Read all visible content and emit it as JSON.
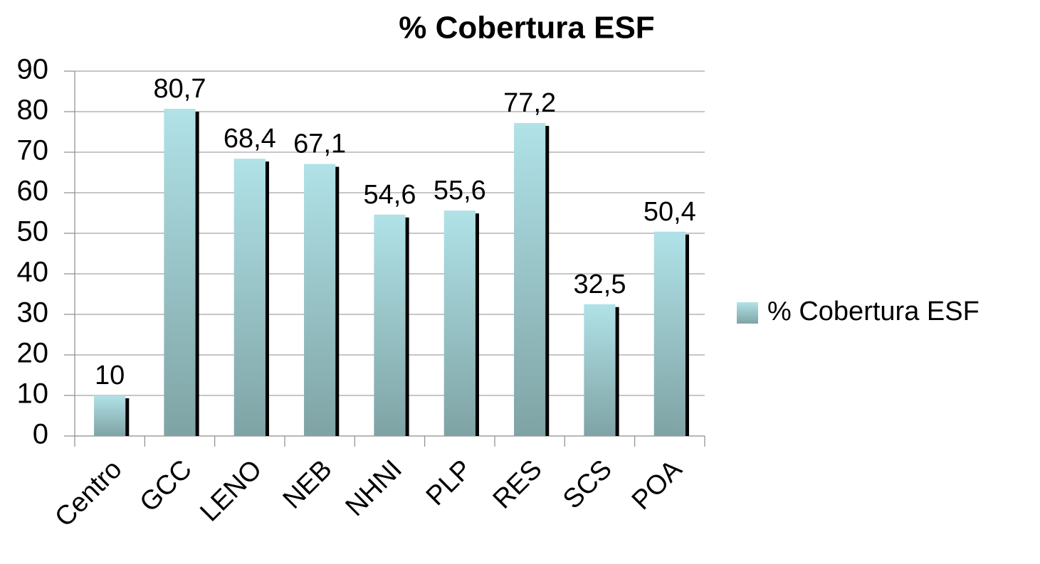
{
  "chart_data": {
    "type": "bar",
    "title": "% Cobertura ESF",
    "categories": [
      "Centro",
      "GCC",
      "LENO",
      "NEB",
      "NHNI",
      "PLP",
      "RES",
      "SCS",
      "POA"
    ],
    "series": [
      {
        "name": "% Cobertura ESF",
        "color": "#b0e2e7",
        "values": [
          10,
          80.7,
          68.4,
          67.1,
          54.6,
          55.6,
          77.2,
          32.5,
          50.4
        ],
        "value_labels": [
          "10",
          "80,7",
          "68,4",
          "67,1",
          "54,6",
          "55,6",
          "77,2",
          "32,5",
          "50,4"
        ]
      }
    ],
    "ylim": [
      0,
      90
    ],
    "yticks": [
      0,
      10,
      20,
      30,
      40,
      50,
      60,
      70,
      80,
      90
    ],
    "grid": true,
    "legend": "right"
  }
}
